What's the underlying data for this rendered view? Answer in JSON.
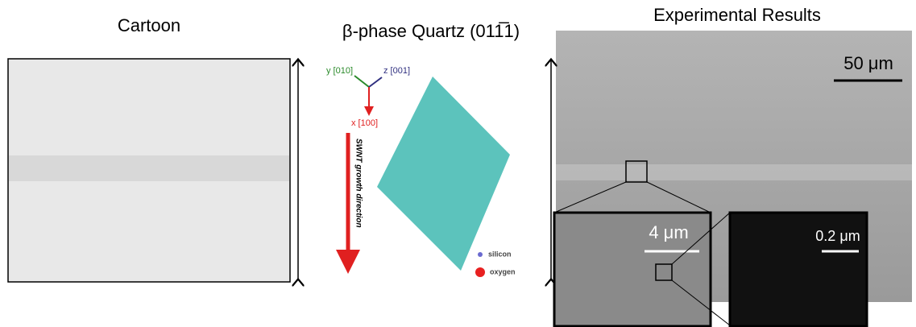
{
  "panels": {
    "cartoon": {
      "title": "Cartoon"
    },
    "structure": {
      "title": "β-phase Quartz (011̅1)",
      "axes": {
        "y": "y [010]",
        "z": "z [001]",
        "x": "x [100]"
      },
      "growth": "SWNT growth direction",
      "legend": {
        "silicon": "silicon",
        "oxygen": "oxygen"
      }
    },
    "experiment": {
      "title": "Experimental Results",
      "scale_main": "50 μm",
      "scale_inset1": "4 μm",
      "scale_inset2": "0.2 μm"
    }
  }
}
